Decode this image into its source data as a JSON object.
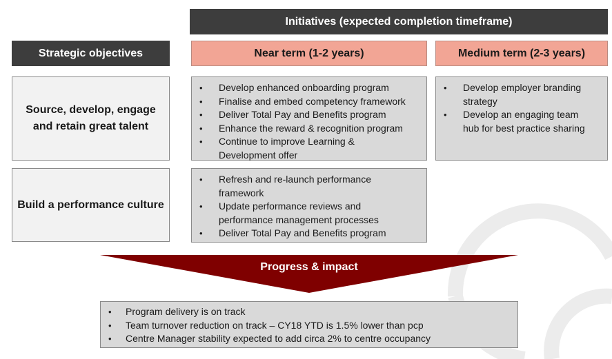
{
  "header": {
    "initiatives_title": "Initiatives (expected completion timeframe)",
    "strategic_objectives": "Strategic objectives",
    "near_term": "Near term (1-2 years)",
    "medium_term": "Medium term (2-3 years)"
  },
  "rows": [
    {
      "objective": "Source, develop, engage and retain great talent",
      "near_term": [
        "Develop enhanced onboarding program",
        "Finalise and embed competency framework",
        "Deliver Total Pay and Benefits program",
        "Enhance the reward & recognition program",
        "Continue to improve Learning & Development offer"
      ],
      "medium_term": [
        "Develop employer branding strategy",
        "Develop an engaging team hub for best practice sharing"
      ]
    },
    {
      "objective": "Build a performance culture",
      "near_term": [
        "Refresh and re-launch performance framework",
        "Update performance reviews and performance management processes",
        "Deliver Total Pay and Benefits program"
      ]
    }
  ],
  "progress": {
    "label": "Progress & impact",
    "items": [
      "Program delivery is on track",
      "Team turnover reduction on track – CY18 YTD is 1.5% lower than pcp",
      "Centre Manager stability expected to add circa 2% to centre occupancy"
    ]
  },
  "colors": {
    "dark_header": "#3d3d3d",
    "pink_header": "#f2a595",
    "arrow": "#7f0000",
    "list_box": "#d9d9d9",
    "objective_box": "#f2f2f2"
  }
}
